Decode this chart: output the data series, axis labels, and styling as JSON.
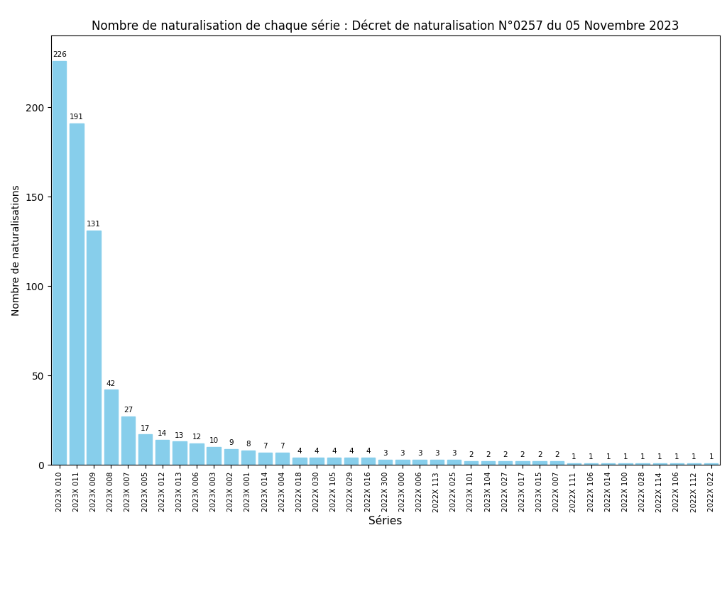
{
  "title": "Nombre de naturalisation de chaque série : Décret de naturalisation N°0257 du 05 Novembre 2023",
  "xlabel": "Séries",
  "ylabel": "Nombre de naturalisations",
  "bar_color": "#87CEEB",
  "categories": [
    "2023X 010",
    "2023X 011",
    "2023X 009",
    "2023X 008",
    "2023X 007",
    "2023X 005",
    "2023X 012",
    "2023X 013",
    "2023X 006",
    "2023X 003",
    "2023X 002",
    "2023X 001",
    "2023X 014",
    "2023X 004",
    "2022X 018",
    "2022X 030",
    "2022X 105",
    "2022X 029",
    "2022X 016",
    "2022X 300",
    "2023X 000",
    "2022X 006",
    "2022X 113",
    "2022X 025",
    "2023X 101",
    "2023X 104",
    "2022X 027",
    "2023X 017",
    "2023X 015",
    "2022X 007",
    "2022X 111",
    "2022X 106",
    "2022X 014",
    "2022X 100",
    "2022X 028",
    "2022X 114",
    "2022X 106",
    "2022X 112",
    "2022X 022"
  ],
  "values": [
    226,
    191,
    131,
    42,
    27,
    17,
    14,
    13,
    12,
    10,
    9,
    8,
    7,
    7,
    4,
    4,
    4,
    4,
    4,
    3,
    3,
    3,
    3,
    3,
    2,
    2,
    2,
    2,
    2,
    2,
    1,
    1,
    1,
    1,
    1,
    1,
    1,
    1,
    1
  ],
  "ylim": [
    0,
    240
  ],
  "title_fontsize": 12,
  "yticks": [
    0,
    50,
    100,
    150,
    200
  ]
}
